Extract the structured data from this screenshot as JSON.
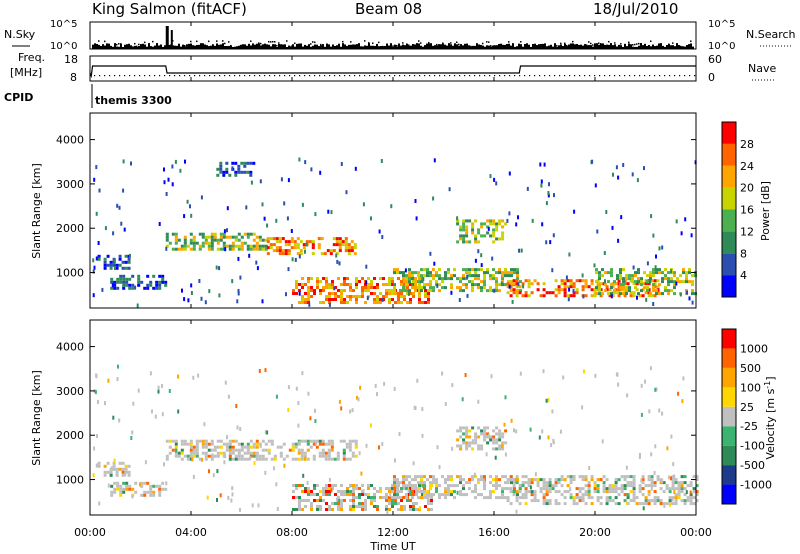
{
  "header": {
    "station": "King Salmon (fitACF)",
    "beam": "Beam 08",
    "date": "18/Jul/2010"
  },
  "noise_panel": {
    "left_label": "N.Sky",
    "right_label": "N.Search",
    "right_ticks": [
      "10^5",
      "10^0"
    ],
    "left_ticks": [
      "10^5",
      "10^0"
    ]
  },
  "freq_panel": {
    "left_label_1": "Freq.",
    "left_label_2": "[MHz]",
    "right_label": "Nave",
    "left_ticks": [
      "18",
      "8"
    ],
    "right_ticks": [
      "60",
      "0"
    ]
  },
  "cpid_panel": {
    "label": "CPID",
    "mode": "themis 3300"
  },
  "time_axis": {
    "label": "Time UT",
    "ticks": [
      "00:00",
      "04:00",
      "08:00",
      "12:00",
      "16:00",
      "20:00",
      "00:00"
    ]
  },
  "range_axis": {
    "label": "Slant Range [km]",
    "ticks": [
      "1000",
      "2000",
      "3000",
      "4000"
    ]
  },
  "colors": {
    "power": [
      "#0000ff",
      "#2b4fb0",
      "#2e8b57",
      "#4caf50",
      "#c8d400",
      "#ffa500",
      "#ff6400",
      "#ff0000"
    ],
    "velocity": [
      "#0000ff",
      "#1e3a8a",
      "#2e8b57",
      "#3cb371",
      "#c0c0c0",
      "#ffd700",
      "#ffa500",
      "#ff6400",
      "#ff0000"
    ]
  },
  "chart_data": [
    {
      "type": "heatmap",
      "title": "",
      "xlabel": "Time UT",
      "ylabel": "Slant Range [km]",
      "xlim": [
        0,
        24
      ],
      "ylim": [
        200,
        4600
      ],
      "colorbar": {
        "label": "Power [dB]",
        "ticks": [
          "4",
          "8",
          "12",
          "16",
          "20",
          "24",
          "28"
        ]
      },
      "echo_regions": [
        {
          "t_start": 0.3,
          "t_end": 1.5,
          "r_low": 1100,
          "r_high": 1400,
          "level": "low"
        },
        {
          "t_start": 0.8,
          "t_end": 3.0,
          "r_low": 650,
          "r_high": 950,
          "level": "low"
        },
        {
          "t_start": 3.0,
          "t_end": 7.0,
          "r_low": 1500,
          "r_high": 1900,
          "level": "mid"
        },
        {
          "t_start": 7.0,
          "t_end": 10.5,
          "r_low": 1450,
          "r_high": 1800,
          "level": "high"
        },
        {
          "t_start": 8.0,
          "t_end": 13.5,
          "r_low": 350,
          "r_high": 900,
          "level": "high"
        },
        {
          "t_start": 12.0,
          "t_end": 17.0,
          "r_low": 600,
          "r_high": 1100,
          "level": "mid"
        },
        {
          "t_start": 14.5,
          "t_end": 16.5,
          "r_low": 1700,
          "r_high": 2200,
          "level": "mid"
        },
        {
          "t_start": 16.5,
          "t_end": 22.5,
          "r_low": 450,
          "r_high": 850,
          "level": "high"
        },
        {
          "t_start": 20.0,
          "t_end": 24.0,
          "r_low": 500,
          "r_high": 1100,
          "level": "mid"
        },
        {
          "t_start": 5.0,
          "t_end": 6.5,
          "r_low": 3200,
          "r_high": 3500,
          "level": "low"
        }
      ]
    },
    {
      "type": "heatmap",
      "title": "",
      "xlabel": "Time UT",
      "ylabel": "Slant Range [km]",
      "xlim": [
        0,
        24
      ],
      "ylim": [
        200,
        4600
      ],
      "colorbar": {
        "label": "Velocity [m s^-1]",
        "ticks": [
          "1000",
          "500",
          "100",
          "25",
          "-25",
          "-100",
          "-500",
          "-1000"
        ]
      },
      "echo_regions": [
        {
          "t_start": 0.3,
          "t_end": 1.5,
          "r_low": 1100,
          "r_high": 1400,
          "level": "near-zero"
        },
        {
          "t_start": 0.8,
          "t_end": 3.0,
          "r_low": 650,
          "r_high": 950,
          "level": "near-zero"
        },
        {
          "t_start": 3.0,
          "t_end": 10.5,
          "r_low": 1450,
          "r_high": 1900,
          "level": "near-zero"
        },
        {
          "t_start": 8.0,
          "t_end": 13.5,
          "r_low": 350,
          "r_high": 900,
          "level": "mixed"
        },
        {
          "t_start": 12.0,
          "t_end": 17.0,
          "r_low": 600,
          "r_high": 1100,
          "level": "near-zero"
        },
        {
          "t_start": 14.5,
          "t_end": 16.5,
          "r_low": 1700,
          "r_high": 2200,
          "level": "near-zero"
        },
        {
          "t_start": 16.5,
          "t_end": 24.0,
          "r_low": 450,
          "r_high": 1100,
          "level": "near-zero"
        }
      ]
    }
  ]
}
